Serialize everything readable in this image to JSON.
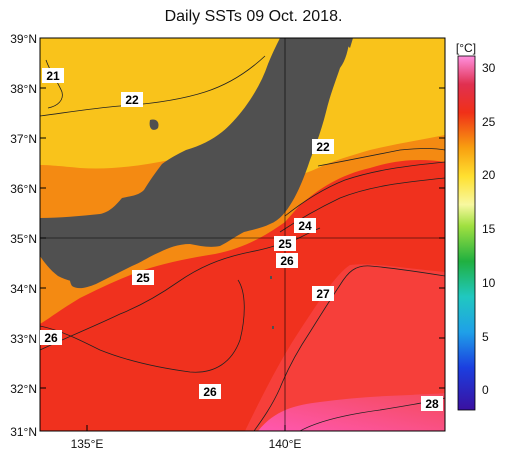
{
  "title": "Daily SSTs 09 Oct. 2018.",
  "lat_labels": [
    "39°N",
    "38°N",
    "37°N",
    "36°N",
    "35°N",
    "34°N",
    "33°N",
    "32°N",
    "31°N"
  ],
  "lon_labels": [
    "135°E",
    "140°E"
  ],
  "contour_labels": [
    "21",
    "22",
    "22",
    "24",
    "25",
    "26",
    "25",
    "27",
    "26",
    "26",
    "28"
  ],
  "colorbar": {
    "unit": "[°C]",
    "ticks": [
      "30",
      "25",
      "20",
      "15",
      "10",
      "5",
      "0"
    ],
    "range": [
      -2,
      31
    ]
  },
  "colors": {
    "land": "#505050",
    "warm": "#f0311e",
    "hot": "#ff6fa8",
    "orange": "#f48a12",
    "yellow": "#f9c31b"
  }
}
